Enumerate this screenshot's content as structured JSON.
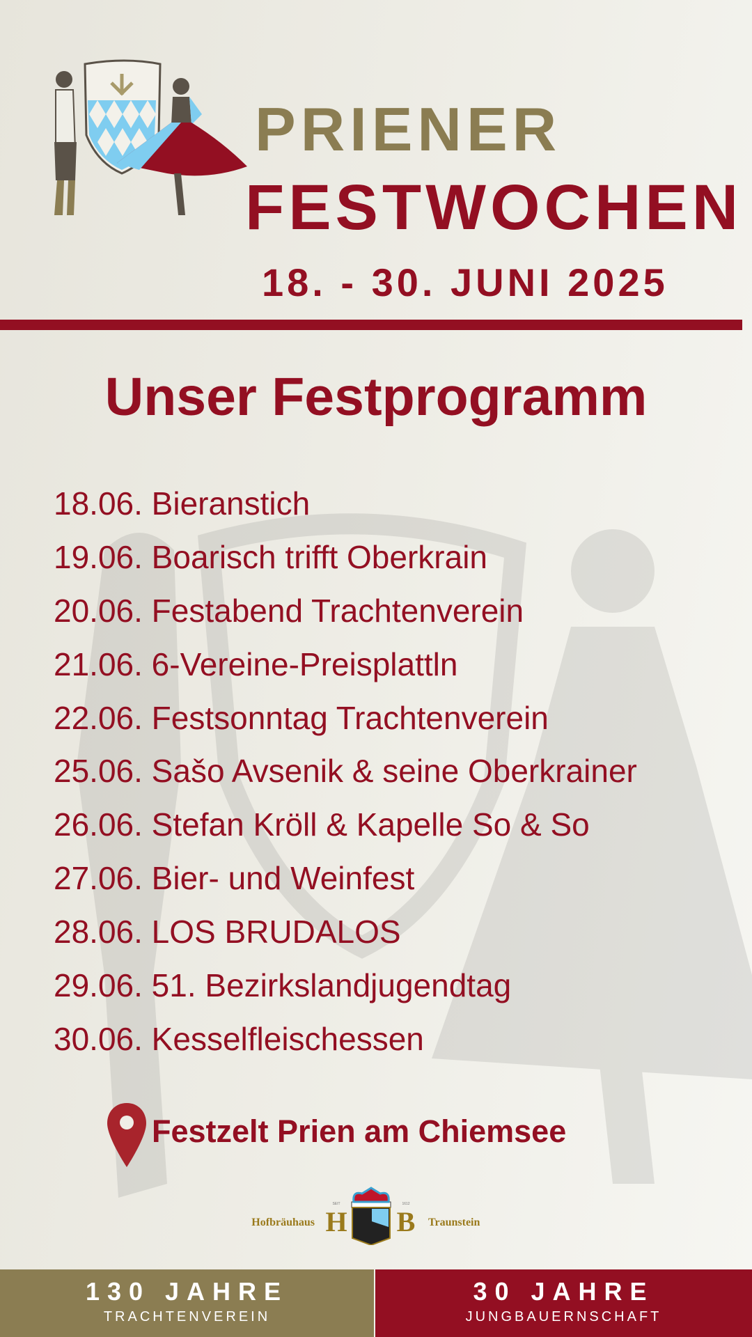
{
  "header": {
    "line1": "PRIENER",
    "line2": "FESTWOCHEN",
    "dates": "18. - 30. JUNI 2025"
  },
  "program": {
    "title": "Unser Festprogramm",
    "items": [
      "18.06. Bieranstich",
      "19.06. Boarisch trifft Oberkrain",
      "20.06. Festabend Trachtenverein",
      "21.06. 6-Vereine-Preisplattln",
      "22.06. Festsonntag Trachtenverein",
      "25.06. Sašo Avsenik & seine Oberkrainer",
      "26.06. Stefan Kröll & Kapelle So & So",
      "27.06. Bier- und Weinfest",
      "28.06. LOS BRUDALOS",
      "29.06. 51. Bezirkslandjugendtag",
      "30.06. Kesselfleischessen"
    ]
  },
  "location": {
    "icon": "map-pin-icon",
    "text": "Festzelt Prien am Chiemsee"
  },
  "sponsor": {
    "left": "Hofbräuhaus",
    "right": "Traunstein",
    "seit": "SEIT",
    "year": "1612"
  },
  "footer": {
    "left": {
      "big": "130 JAHRE",
      "small": "TRACHTENVEREIN"
    },
    "right": {
      "big": "30 JAHRE",
      "small": "JUNGBAUERNSCHAFT"
    }
  },
  "colors": {
    "red": "#930f22",
    "olive": "#8b7d52",
    "blue": "#7fcdf0",
    "background": "#efeee7"
  }
}
